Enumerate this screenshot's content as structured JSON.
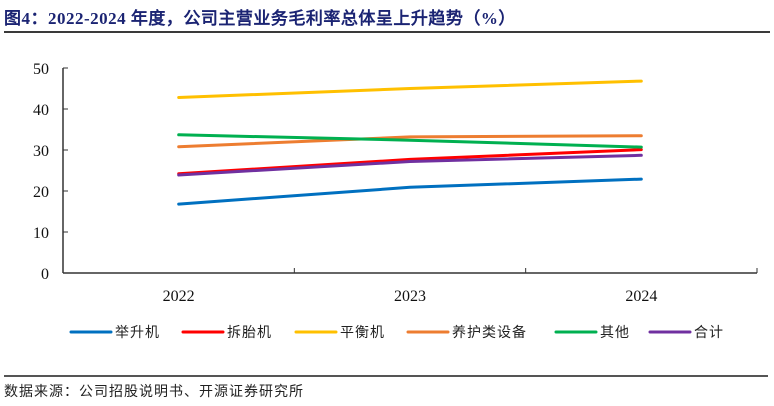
{
  "header": {
    "title": "图4：2022-2024 年度，公司主营业务毛利率总体呈上升趋势（%）"
  },
  "footer": {
    "source": "数据来源：公司招股说明书、开源证券研究所"
  },
  "chart_data": {
    "type": "line",
    "title": "图4：2022-2024 年度，公司主营业务毛利率总体呈上升趋势（%）",
    "xlabel": "",
    "ylabel": "",
    "categories": [
      "2022",
      "2023",
      "2024"
    ],
    "ylim": [
      0,
      50
    ],
    "yticks": [
      0,
      10,
      20,
      30,
      40,
      50
    ],
    "grid": false,
    "legend_position": "bottom",
    "series": [
      {
        "name": "举升机",
        "color": "#0070c0",
        "values": [
          16.8,
          20.9,
          22.9
        ]
      },
      {
        "name": "拆胎机",
        "color": "#ff0000",
        "values": [
          24.2,
          27.7,
          30.1
        ]
      },
      {
        "name": "平衡机",
        "color": "#ffc000",
        "values": [
          42.8,
          45.0,
          46.8
        ]
      },
      {
        "name": "养护类设备",
        "color": "#ed7d31",
        "values": [
          30.8,
          33.2,
          33.5
        ]
      },
      {
        "name": "其他",
        "color": "#00b050",
        "values": [
          33.7,
          32.4,
          30.7
        ]
      },
      {
        "name": "合计",
        "color": "#7030a0",
        "values": [
          23.9,
          27.2,
          28.7
        ]
      }
    ]
  }
}
